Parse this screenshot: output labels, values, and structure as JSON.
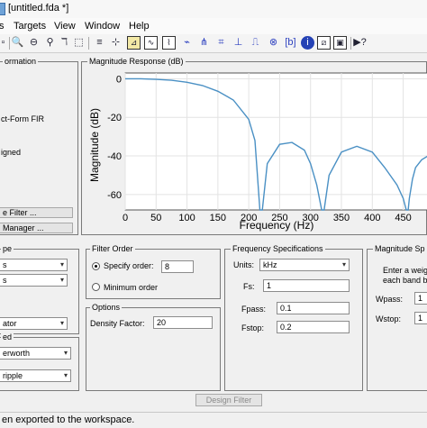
{
  "window": {
    "title": "[untitled.fda *]"
  },
  "menu": {
    "items": [
      "s",
      "Targets",
      "View",
      "Window",
      "Help"
    ]
  },
  "left_panel": {
    "title": "ormation",
    "structure": "ct-Form FIR",
    "stable": "igned",
    "convert_button": "e Filter ...",
    "manager_button": " Manager ..."
  },
  "plot_panel": {
    "title": "Magnitude Response (dB)",
    "chart_data": {
      "type": "line",
      "xlabel": "Frequency (Hz)",
      "ylabel": "Magnitude (dB)",
      "xlim": [
        0,
        490
      ],
      "ylim": [
        -68,
        3
      ],
      "xticks": [
        "0",
        "50",
        "100",
        "150",
        "200",
        "250",
        "300",
        "350",
        "400",
        "450"
      ],
      "yticks": [
        "0",
        "-20",
        "-40",
        "-60"
      ],
      "grid": true,
      "series": [
        {
          "color": "#4a90c4",
          "x": [
            0,
            25,
            50,
            75,
            100,
            125,
            150,
            175,
            200,
            210,
            218,
            222,
            230,
            250,
            270,
            290,
            300,
            310,
            318,
            322,
            330,
            350,
            375,
            400,
            420,
            440,
            450,
            455,
            458,
            460,
            465,
            470,
            480,
            490
          ],
          "y": [
            0,
            0,
            -0.3,
            -0.8,
            -1.8,
            -3.5,
            -6.5,
            -11,
            -21,
            -32,
            -68,
            -68,
            -44,
            -34,
            -33,
            -37,
            -44,
            -55,
            -68,
            -68,
            -50,
            -38,
            -35,
            -38,
            -46,
            -55,
            -62,
            -68,
            -68,
            -62,
            -52,
            -46,
            -42,
            -40
          ]
        }
      ]
    }
  },
  "response_type": {
    "title": "pe",
    "option1": "s",
    "option2": "s",
    "option3": "ator",
    "option4": "erworth",
    "option5": "ripple",
    "method_label": "ed"
  },
  "filter_order": {
    "title": "Filter Order",
    "specify_label": "Specify order:",
    "order_value": "8",
    "minimum_label": "Minimum order"
  },
  "options": {
    "title": "Options",
    "density_label": "Density Factor:",
    "density_value": "20"
  },
  "freq_specs": {
    "title": "Frequency Specifications",
    "units_label": "Units:",
    "units_value": "kHz",
    "fs_label": "Fs:",
    "fs_value": "1",
    "fpass_label": "Fpass:",
    "fpass_value": "0.1",
    "fstop_label": "Fstop:",
    "fstop_value": "0.2"
  },
  "mag_specs": {
    "title": "Magnitude Sp",
    "instr1": "Enter a weig",
    "instr2": "each band b",
    "wpass_label": "Wpass:",
    "wpass_value": "1",
    "wstop_label": "Wstop:",
    "wstop_value": "1"
  },
  "design_button": {
    "label": "Design Filter"
  },
  "status": {
    "text": "en exported to the workspace."
  }
}
